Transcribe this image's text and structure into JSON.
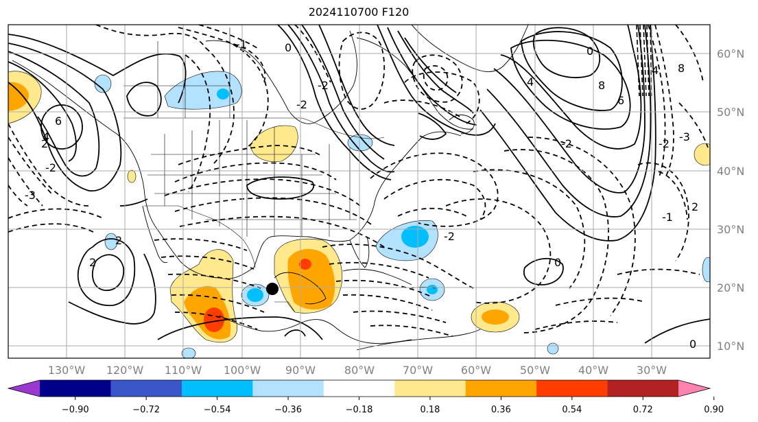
{
  "title": "2024110700 F120",
  "map": {
    "lon_labels": [
      "130°W",
      "120°W",
      "110°W",
      "100°W",
      "90°W",
      "80°W",
      "70°W",
      "60°W",
      "50°W",
      "40°W",
      "30°W"
    ],
    "lat_labels": [
      "60°N",
      "50°N",
      "40°N",
      "30°N",
      "20°N",
      "10°N"
    ],
    "grid": true,
    "contour_labels": [
      "2",
      "4",
      "6",
      "8",
      "-3",
      "-2",
      "-1",
      "0",
      "2",
      "4",
      "0",
      "-2",
      "8",
      "6",
      "4",
      "-2",
      "-3",
      "-2",
      "2",
      "-1",
      "2",
      "0",
      "-2",
      "-2",
      "0"
    ],
    "storm_marker": "black-dot"
  },
  "colorbar": {
    "tick_labels": [
      "−0.90",
      "−0.72",
      "−0.54",
      "−0.36",
      "−0.18",
      "0.18",
      "0.36",
      "0.54",
      "0.72",
      "0.90"
    ],
    "colors": {
      "under": "#9a39d0",
      "bins": [
        "#00008b",
        "#3a55c8",
        "#00bfff",
        "#b2e2ff",
        "#ffffff",
        "#ffe98c",
        "#ffa500",
        "#ff3d00",
        "#b22222"
      ],
      "over": "#ff82b0"
    }
  }
}
